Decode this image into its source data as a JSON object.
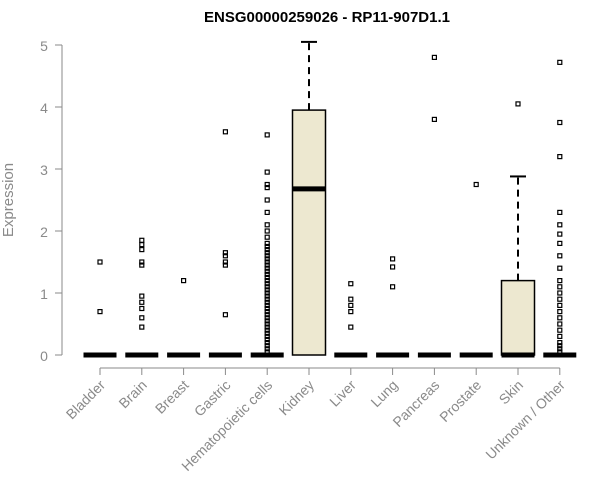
{
  "chart_data": {
    "type": "boxplot",
    "title": "ENSG00000259026 - RP11-907D1.1",
    "ylabel": "Expression",
    "xlabel": "",
    "ylim": [
      0,
      5
    ],
    "yticks": [
      0,
      1,
      2,
      3,
      4,
      5
    ],
    "grid": false,
    "box_color": "#ede8d0",
    "categories": [
      "Bladder",
      "Brain",
      "Breast",
      "Gastric",
      "Hematopoietic cells",
      "Kidney",
      "Liver",
      "Lung",
      "Pancreas",
      "Prostate",
      "Skin",
      "Unknown / Other"
    ],
    "boxes": [
      {
        "category": "Bladder",
        "q1": 0,
        "median": 0,
        "q3": 0,
        "whisker_low": 0,
        "whisker_high": 0,
        "outliers": [
          0.7,
          1.5
        ]
      },
      {
        "category": "Brain",
        "q1": 0,
        "median": 0,
        "q3": 0,
        "whisker_low": 0,
        "whisker_high": 0,
        "outliers": [
          0.45,
          0.6,
          0.75,
          0.85,
          0.95,
          1.45,
          1.5,
          1.7,
          1.78,
          1.85
        ]
      },
      {
        "category": "Breast",
        "q1": 0,
        "median": 0,
        "q3": 0,
        "whisker_low": 0,
        "whisker_high": 0,
        "outliers": [
          1.2
        ]
      },
      {
        "category": "Gastric",
        "q1": 0,
        "median": 0,
        "q3": 0,
        "whisker_low": 0,
        "whisker_high": 0,
        "outliers": [
          0.65,
          1.45,
          1.5,
          1.6,
          1.65,
          3.6
        ]
      },
      {
        "category": "Hematopoietic cells",
        "q1": 0,
        "median": 0,
        "q3": 0,
        "whisker_low": 0,
        "whisker_high": 0,
        "outliers": [
          0.05,
          0.1,
          0.15,
          0.2,
          0.25,
          0.3,
          0.35,
          0.4,
          0.45,
          0.5,
          0.55,
          0.6,
          0.65,
          0.7,
          0.75,
          0.8,
          0.85,
          0.9,
          0.95,
          1.0,
          1.05,
          1.1,
          1.15,
          1.2,
          1.25,
          1.3,
          1.35,
          1.4,
          1.45,
          1.5,
          1.55,
          1.6,
          1.65,
          1.7,
          1.75,
          1.8,
          1.9,
          2.0,
          2.1,
          2.3,
          2.5,
          2.7,
          2.75,
          2.95,
          3.55
        ]
      },
      {
        "category": "Kidney",
        "q1": 0,
        "median": 2.68,
        "q3": 3.95,
        "whisker_low": 0,
        "whisker_high": 5.05,
        "outliers": []
      },
      {
        "category": "Liver",
        "q1": 0,
        "median": 0,
        "q3": 0,
        "whisker_low": 0,
        "whisker_high": 0,
        "outliers": [
          0.45,
          0.7,
          0.8,
          0.9,
          1.15
        ]
      },
      {
        "category": "Lung",
        "q1": 0,
        "median": 0,
        "q3": 0,
        "whisker_low": 0,
        "whisker_high": 0,
        "outliers": [
          1.1,
          1.42,
          1.55
        ]
      },
      {
        "category": "Pancreas",
        "q1": 0,
        "median": 0,
        "q3": 0,
        "whisker_low": 0,
        "whisker_high": 0,
        "outliers": [
          3.8,
          4.8
        ]
      },
      {
        "category": "Prostate",
        "q1": 0,
        "median": 0,
        "q3": 0,
        "whisker_low": 0,
        "whisker_high": 0,
        "outliers": [
          2.75
        ]
      },
      {
        "category": "Skin",
        "q1": 0,
        "median": 0,
        "q3": 1.2,
        "whisker_low": 0,
        "whisker_high": 2.88,
        "outliers": [
          4.05
        ]
      },
      {
        "category": "Unknown / Other",
        "q1": 0,
        "median": 0,
        "q3": 0,
        "whisker_low": 0,
        "whisker_high": 0,
        "outliers": [
          0.05,
          0.1,
          0.15,
          0.2,
          0.3,
          0.4,
          0.5,
          0.6,
          0.7,
          0.8,
          0.9,
          1.0,
          1.1,
          1.2,
          1.4,
          1.6,
          1.8,
          1.95,
          2.1,
          2.3,
          3.2,
          3.75,
          4.72
        ]
      }
    ]
  }
}
